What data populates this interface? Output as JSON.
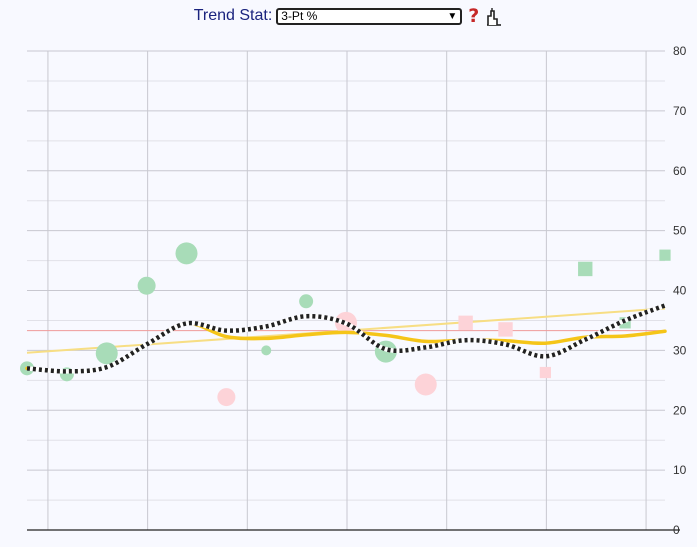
{
  "toolbar": {
    "label": "Trend Stat:",
    "selected": "3-Pt %",
    "help_icon": "question-mark-icon",
    "chart_icon": "line-chart-icon"
  },
  "colors": {
    "positive": "#a8dcb8",
    "negative": "#fdd3d8",
    "rolling_avg": "#f5c518",
    "cumulative_avg": "#222222",
    "trend_line": "#f7de84",
    "reference_line": "#ef9a9a",
    "grid": "#c8c8d0"
  },
  "chart_data": {
    "type": "scatter",
    "title": "",
    "xlabel": "",
    "ylabel": "",
    "ylim": [
      0,
      80
    ],
    "y_ticks": [
      "80",
      "70",
      "60",
      "50",
      "40",
      "30",
      "20",
      "10",
      "0"
    ],
    "grid": true,
    "reference_value": 33.3,
    "trend_line": {
      "from": 29.6,
      "to": 37.0
    },
    "points": [
      {
        "game": 1,
        "value": 27.0,
        "size": "small",
        "result": "positive",
        "shape": "circle"
      },
      {
        "game": 2,
        "value": 26.0,
        "size": "small",
        "result": "positive",
        "shape": "circle"
      },
      {
        "game": 3,
        "value": 29.5,
        "size": "large",
        "result": "positive",
        "shape": "circle"
      },
      {
        "game": 4,
        "value": 40.8,
        "size": "medium",
        "result": "positive",
        "shape": "circle"
      },
      {
        "game": 5,
        "value": 46.2,
        "size": "large",
        "result": "positive",
        "shape": "circle"
      },
      {
        "game": 6,
        "value": 22.2,
        "size": "medium",
        "result": "negative",
        "shape": "circle"
      },
      {
        "game": 7,
        "value": 30.0,
        "size": "tiny",
        "result": "positive",
        "shape": "circle"
      },
      {
        "game": 8,
        "value": 38.2,
        "size": "small",
        "result": "positive",
        "shape": "circle"
      },
      {
        "game": 9,
        "value": 34.6,
        "size": "large",
        "result": "negative",
        "shape": "circle"
      },
      {
        "game": 10,
        "value": 29.8,
        "size": "large",
        "result": "positive",
        "shape": "circle"
      },
      {
        "game": 11,
        "value": 24.3,
        "size": "large",
        "result": "negative",
        "shape": "circle"
      },
      {
        "game": 12,
        "value": 34.6,
        "size": "medium",
        "result": "negative",
        "shape": "square"
      },
      {
        "game": 13,
        "value": 33.5,
        "size": "medium",
        "result": "negative",
        "shape": "square"
      },
      {
        "game": 14,
        "value": 26.3,
        "size": "small",
        "result": "negative",
        "shape": "square"
      },
      {
        "game": 15,
        "value": 43.6,
        "size": "medium",
        "result": "positive",
        "shape": "square"
      },
      {
        "game": 16,
        "value": 34.6,
        "size": "small",
        "result": "positive",
        "shape": "square"
      },
      {
        "game": 17,
        "value": 45.9,
        "size": "small",
        "result": "positive",
        "shape": "square"
      }
    ],
    "series": [
      {
        "style": "rolling-average",
        "values": [
          27.0,
          26.5,
          27.2,
          31.0,
          34.5,
          32.3,
          32.0,
          32.6,
          33.0,
          32.5,
          31.5,
          31.7,
          31.6,
          31.2,
          32.2,
          32.4,
          33.2
        ]
      },
      {
        "style": "cumulative-average",
        "values": [
          27.0,
          26.5,
          27.2,
          31.0,
          34.5,
          33.3,
          34.0,
          35.7,
          34.5,
          30.2,
          30.5,
          31.7,
          31.0,
          29.0,
          31.8,
          35.0,
          37.5
        ]
      }
    ]
  }
}
